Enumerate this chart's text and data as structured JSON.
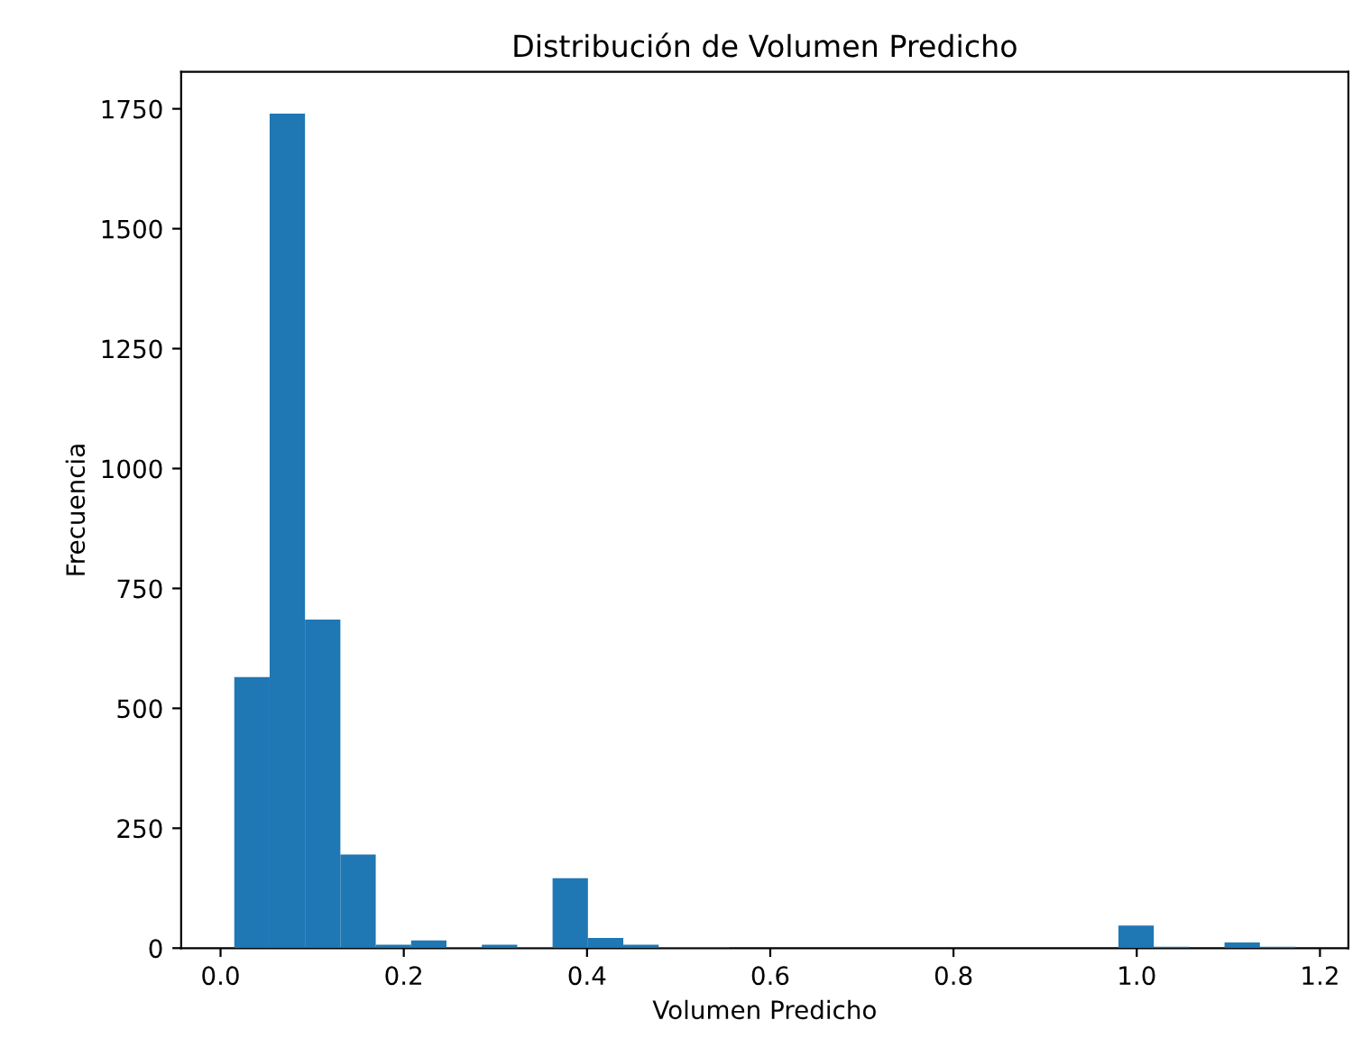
{
  "chart_data": {
    "type": "histogram",
    "title": "Distribución de Volumen Predicho",
    "xlabel": "Volumen Predicho",
    "ylabel": "Frecuencia",
    "color": "#1f77b4",
    "bins": [
      0.015,
      0.0536,
      0.0922,
      0.1308,
      0.1694,
      0.208,
      0.2466,
      0.2852,
      0.3238,
      0.3624,
      0.401,
      0.4396,
      0.4782,
      0.5168,
      0.5554,
      0.594,
      0.6326,
      0.6712,
      0.7098,
      0.7484,
      0.787,
      0.8256,
      0.8642,
      0.9028,
      0.9414,
      0.98,
      1.0186,
      1.0572,
      1.0958,
      1.1344,
      1.173
    ],
    "values": [
      565,
      1740,
      685,
      195,
      7,
      16,
      2,
      7,
      2,
      146,
      21,
      7,
      2,
      2,
      0,
      0,
      0,
      0,
      0,
      0,
      0,
      0,
      0,
      0,
      0,
      47,
      3,
      0,
      12,
      3
    ],
    "xlim": [
      -0.043,
      1.231
    ],
    "xticks": [
      {
        "value": 0.0,
        "label": "0.0"
      },
      0.2,
      0.4,
      0.6,
      0.8,
      {
        "value": 1.0,
        "label": "1.0"
      },
      1.2
    ],
    "ylim": [
      0,
      1827
    ],
    "yticks": [
      0,
      250,
      500,
      750,
      1000,
      1250,
      1500,
      1750
    ],
    "grid": false,
    "legend": false
  }
}
